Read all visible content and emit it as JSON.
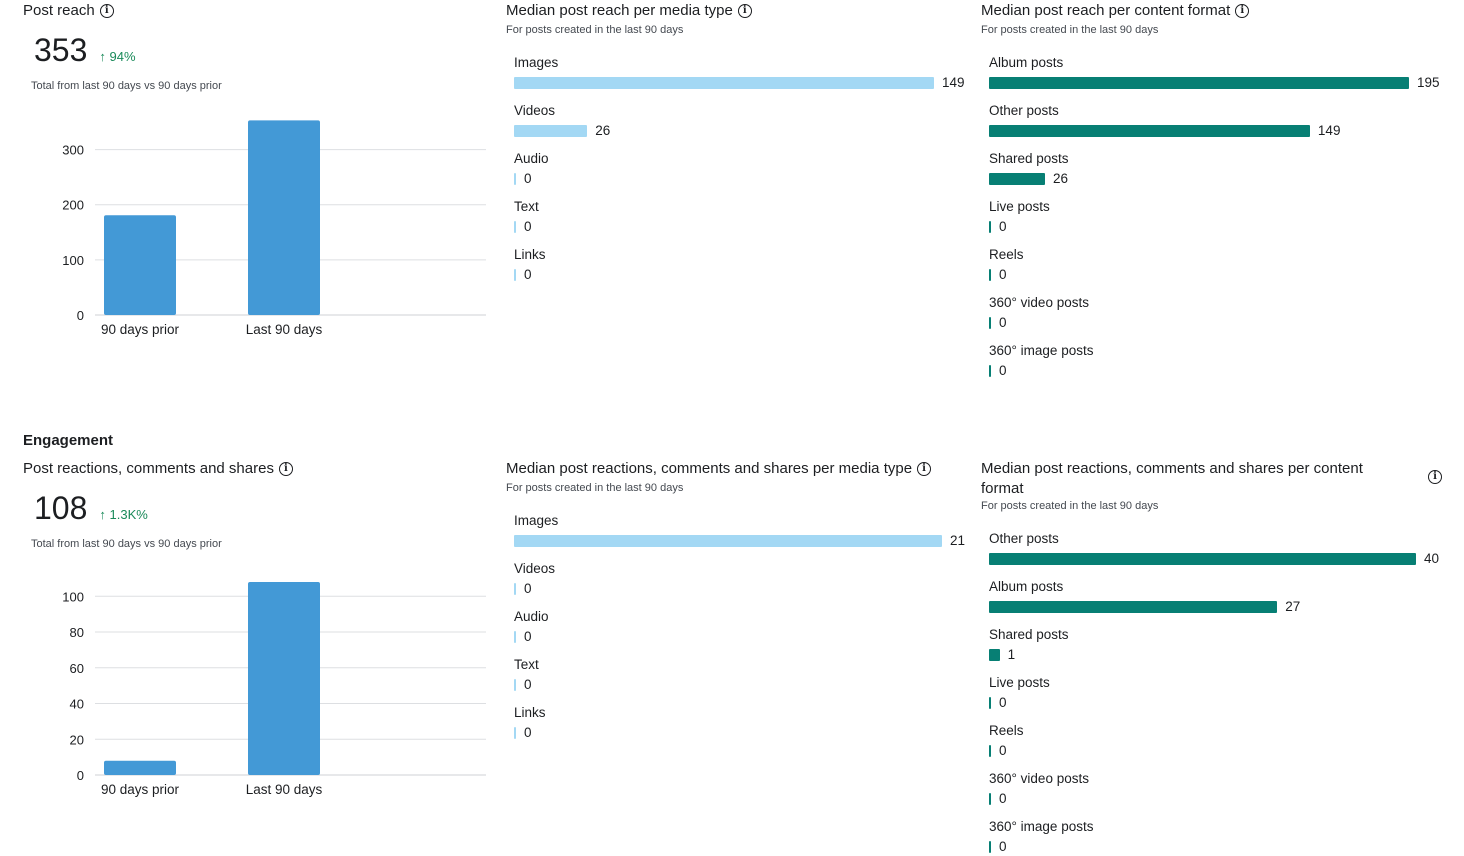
{
  "colors": {
    "vbar": "#4399d6",
    "media_bar": "#a3d8f4",
    "format_bar": "#077f74",
    "grid": "#dddfe2",
    "positive": "#1a8a5a"
  },
  "reach": {
    "title": "Post reach",
    "total": "353",
    "delta": "94%",
    "caption": "Total from last 90 days vs 90 days prior"
  },
  "reach_media": {
    "title": "Median post reach per media type",
    "subtitle": "For posts created in the last 90 days"
  },
  "reach_format": {
    "title": "Median post reach per content format",
    "subtitle": "For posts created in the last 90 days"
  },
  "engagement": {
    "section_title": "Engagement",
    "title": "Post reactions, comments and shares",
    "total": "108",
    "delta": "1.3K%",
    "caption": "Total from last 90 days vs 90 days prior"
  },
  "eng_media": {
    "title": "Median post reactions, comments and shares per media type",
    "subtitle": "For posts created in the last 90 days"
  },
  "eng_format": {
    "title": "Median post reactions, comments and shares per content format",
    "subtitle": "For posts created in the last 90 days"
  },
  "chart_data": [
    {
      "id": "reach_totals",
      "type": "bar",
      "categories": [
        "90 days prior",
        "Last 90 days"
      ],
      "values": [
        181,
        353
      ],
      "ylim": [
        0,
        350
      ],
      "yticks": [
        0,
        100,
        200,
        300
      ],
      "grid": true
    },
    {
      "id": "reach_media",
      "type": "bar",
      "orientation": "horizontal",
      "categories": [
        "Images",
        "Videos",
        "Audio",
        "Text",
        "Links"
      ],
      "values": [
        149,
        26,
        0,
        0,
        0
      ]
    },
    {
      "id": "reach_format",
      "type": "bar",
      "orientation": "horizontal",
      "categories": [
        "Album posts",
        "Other posts",
        "Shared posts",
        "Live posts",
        "Reels",
        "360° video posts",
        "360° image posts"
      ],
      "values": [
        195,
        149,
        26,
        0,
        0,
        0,
        0
      ]
    },
    {
      "id": "eng_totals",
      "type": "bar",
      "categories": [
        "90 days prior",
        "Last 90 days"
      ],
      "values": [
        8,
        108
      ],
      "ylim": [
        0,
        108
      ],
      "yticks": [
        0,
        20,
        40,
        60,
        80,
        100
      ],
      "grid": true
    },
    {
      "id": "eng_media",
      "type": "bar",
      "orientation": "horizontal",
      "categories": [
        "Images",
        "Videos",
        "Audio",
        "Text",
        "Links"
      ],
      "values": [
        21,
        0,
        0,
        0,
        0
      ]
    },
    {
      "id": "eng_format",
      "type": "bar",
      "orientation": "horizontal",
      "categories": [
        "Other posts",
        "Album posts",
        "Shared posts",
        "Live posts",
        "Reels",
        "360° video posts",
        "360° image posts"
      ],
      "values": [
        40,
        27,
        1,
        0,
        0,
        0,
        0
      ]
    }
  ]
}
